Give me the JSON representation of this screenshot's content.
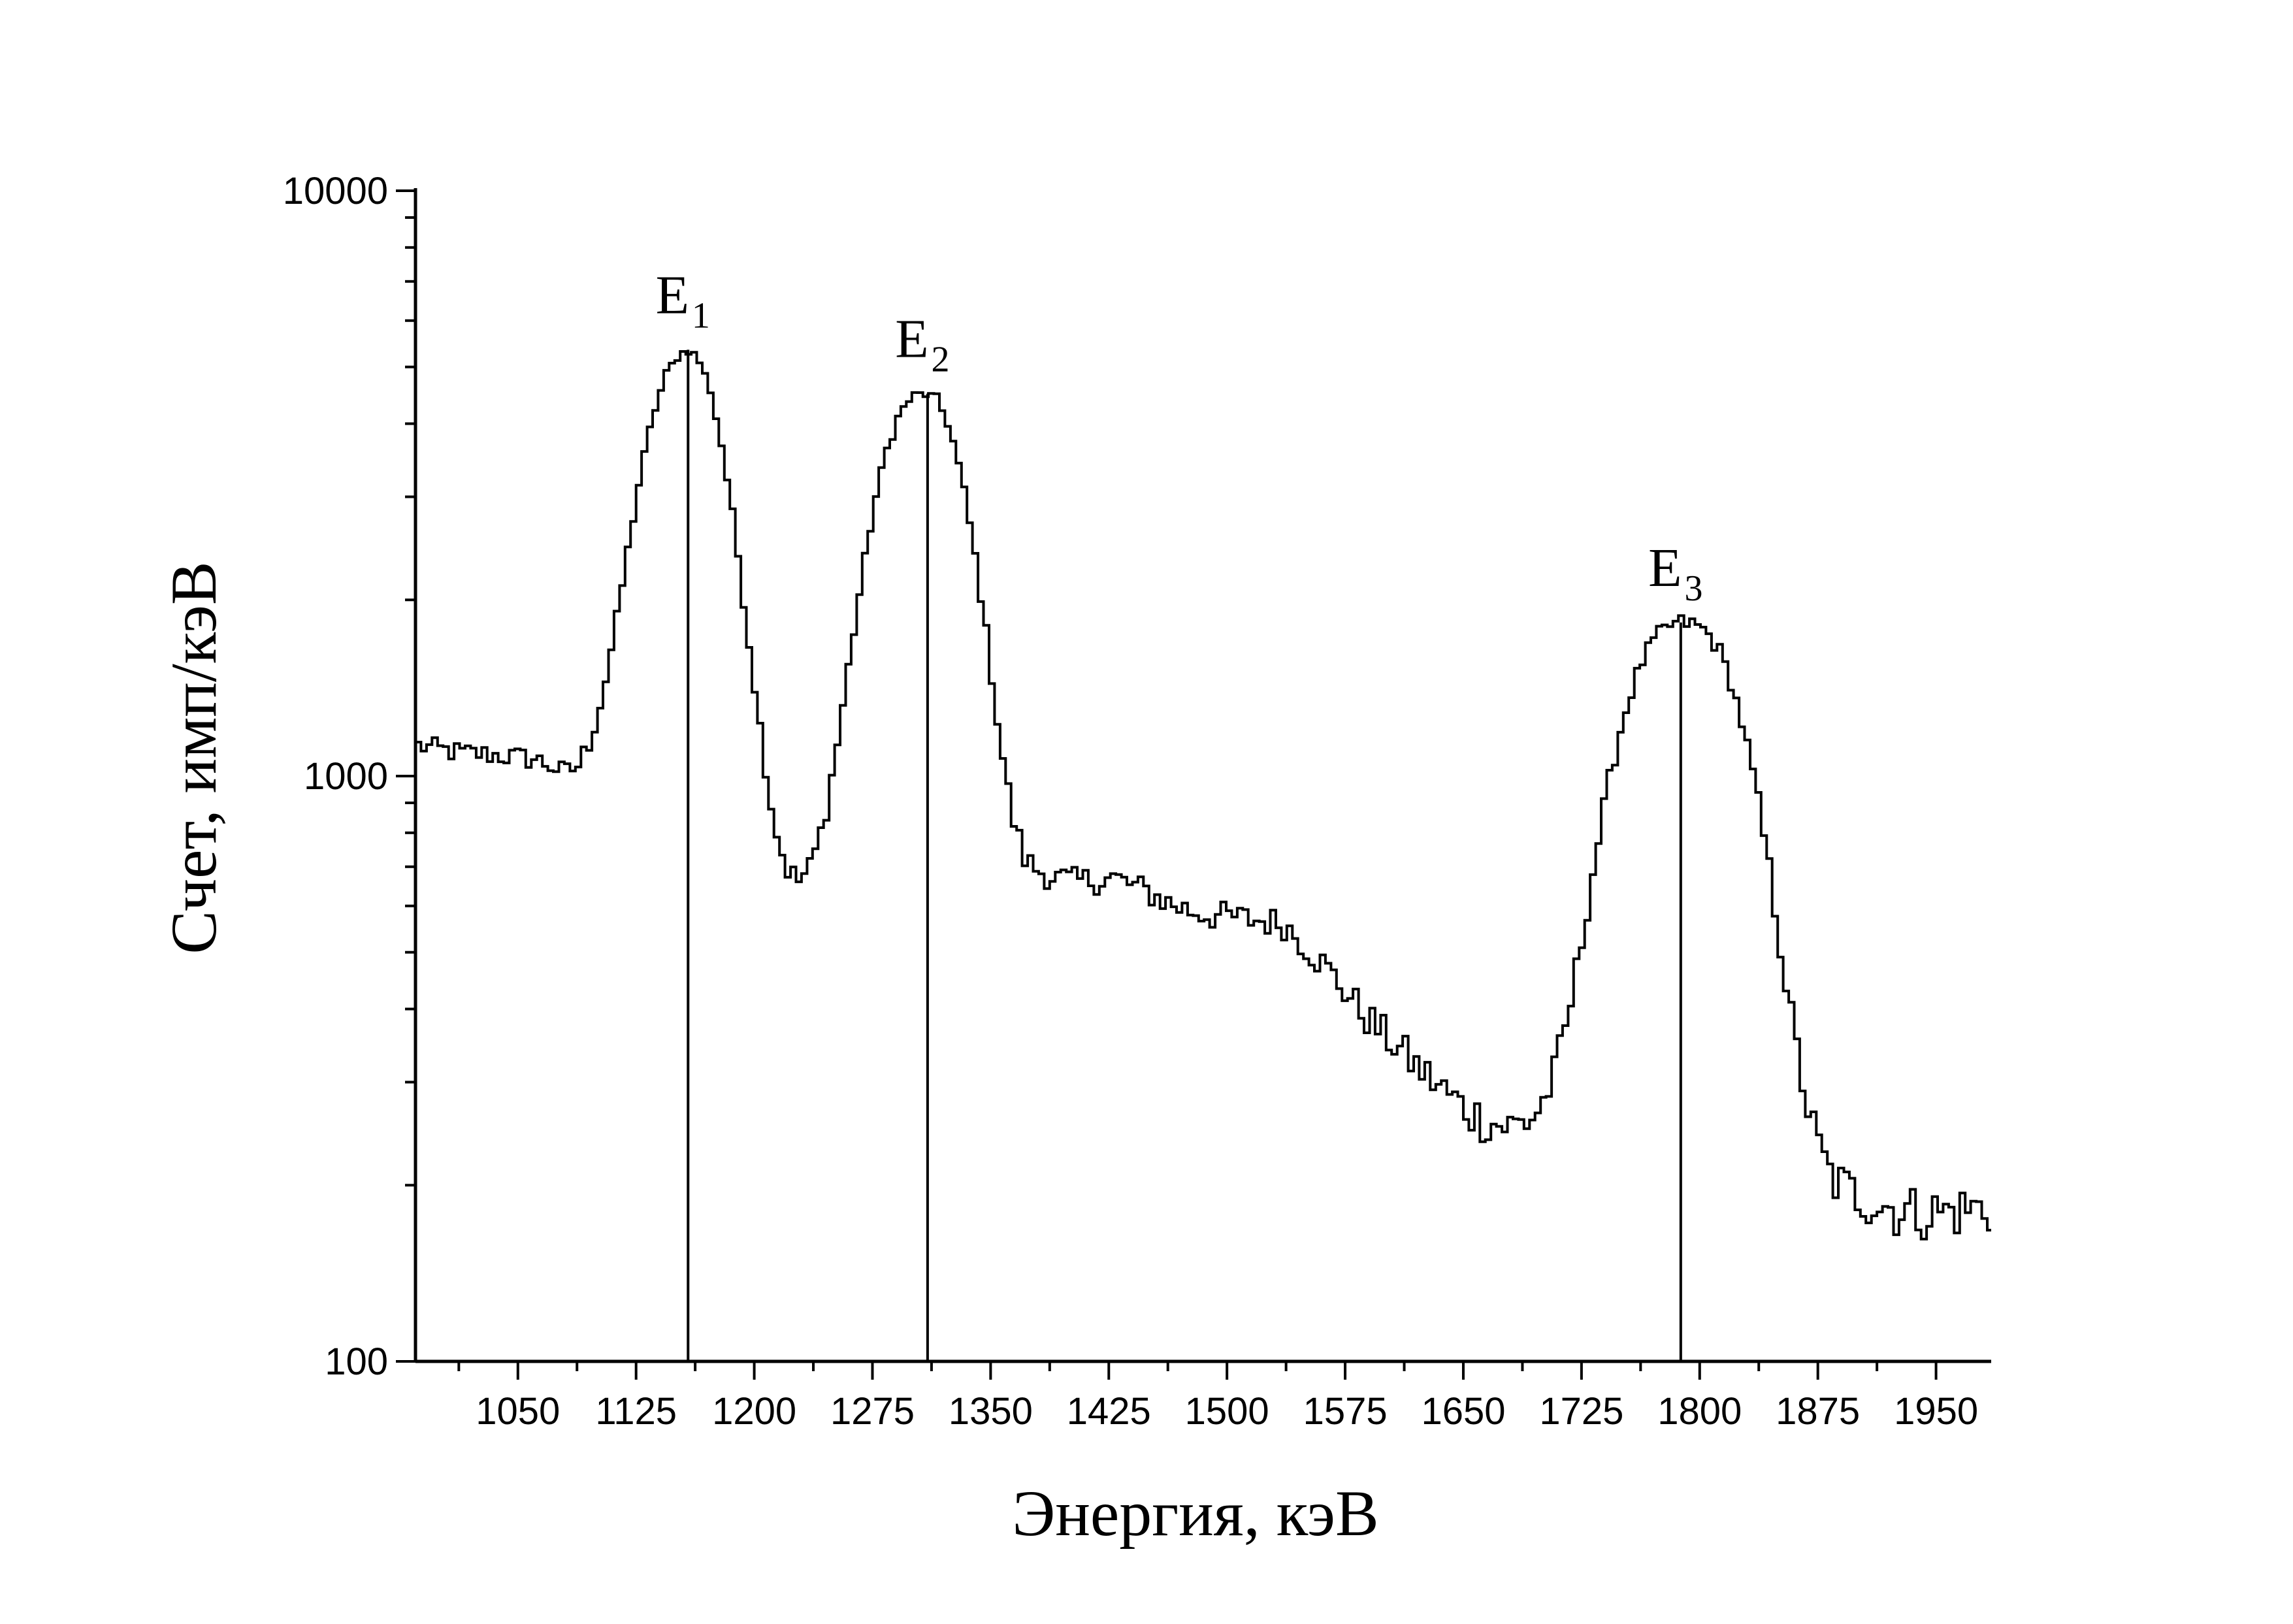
{
  "chart_data": {
    "type": "line",
    "xlabel": "Энергия, кэВ",
    "ylabel": "Счет, имп/кэВ",
    "xlim": [
      985,
      1985
    ],
    "ylim": [
      100,
      10000
    ],
    "yscale": "log",
    "x_ticks": [
      1050,
      1125,
      1200,
      1275,
      1350,
      1425,
      1500,
      1575,
      1650,
      1725,
      1800,
      1875,
      1950
    ],
    "y_ticks": [
      100,
      1000,
      10000
    ],
    "x_tick_labels": [
      "1050",
      "1125",
      "1200",
      "1275",
      "1350",
      "1425",
      "1500",
      "1575",
      "1650",
      "1725",
      "1800",
      "1875",
      "1950"
    ],
    "y_tick_labels": [
      "100",
      "1000",
      "10000"
    ],
    "grid": false,
    "series": [
      {
        "step": true,
        "color": "#000000",
        "points": [
          [
            985,
            1130
          ],
          [
            1000,
            1110
          ],
          [
            1015,
            1095
          ],
          [
            1030,
            1090
          ],
          [
            1045,
            1080
          ],
          [
            1060,
            1070
          ],
          [
            1070,
            1045
          ],
          [
            1080,
            1010
          ],
          [
            1088,
            1040
          ],
          [
            1096,
            1150
          ],
          [
            1104,
            1380
          ],
          [
            1112,
            1800
          ],
          [
            1120,
            2450
          ],
          [
            1128,
            3300
          ],
          [
            1136,
            4150
          ],
          [
            1144,
            4850
          ],
          [
            1152,
            5250
          ],
          [
            1158,
            5350
          ],
          [
            1164,
            5200
          ],
          [
            1172,
            4600
          ],
          [
            1180,
            3600
          ],
          [
            1188,
            2600
          ],
          [
            1196,
            1750
          ],
          [
            1204,
            1200
          ],
          [
            1212,
            850
          ],
          [
            1220,
            700
          ],
          [
            1228,
            660
          ],
          [
            1236,
            700
          ],
          [
            1244,
            830
          ],
          [
            1252,
            1100
          ],
          [
            1260,
            1550
          ],
          [
            1268,
            2150
          ],
          [
            1276,
            2900
          ],
          [
            1284,
            3600
          ],
          [
            1292,
            4150
          ],
          [
            1300,
            4450
          ],
          [
            1308,
            4500
          ],
          [
            1316,
            4400
          ],
          [
            1324,
            3950
          ],
          [
            1332,
            3200
          ],
          [
            1340,
            2400
          ],
          [
            1348,
            1700
          ],
          [
            1356,
            1150
          ],
          [
            1364,
            850
          ],
          [
            1372,
            720
          ],
          [
            1380,
            690
          ],
          [
            1392,
            670
          ],
          [
            1404,
            660
          ],
          [
            1416,
            665
          ],
          [
            1428,
            670
          ],
          [
            1440,
            650
          ],
          [
            1452,
            630
          ],
          [
            1464,
            605
          ],
          [
            1476,
            590
          ],
          [
            1488,
            580
          ],
          [
            1500,
            575
          ],
          [
            1512,
            570
          ],
          [
            1524,
            565
          ],
          [
            1536,
            560
          ],
          [
            1548,
            520
          ],
          [
            1560,
            480
          ],
          [
            1572,
            440
          ],
          [
            1584,
            400
          ],
          [
            1596,
            370
          ],
          [
            1608,
            345
          ],
          [
            1620,
            320
          ],
          [
            1632,
            300
          ],
          [
            1644,
            280
          ],
          [
            1656,
            265
          ],
          [
            1668,
            255
          ],
          [
            1680,
            252
          ],
          [
            1692,
            258
          ],
          [
            1700,
            275
          ],
          [
            1708,
            310
          ],
          [
            1716,
            380
          ],
          [
            1724,
            500
          ],
          [
            1732,
            680
          ],
          [
            1740,
            900
          ],
          [
            1748,
            1150
          ],
          [
            1756,
            1380
          ],
          [
            1764,
            1580
          ],
          [
            1772,
            1720
          ],
          [
            1780,
            1800
          ],
          [
            1788,
            1830
          ],
          [
            1796,
            1820
          ],
          [
            1804,
            1770
          ],
          [
            1812,
            1650
          ],
          [
            1820,
            1450
          ],
          [
            1828,
            1200
          ],
          [
            1836,
            940
          ],
          [
            1844,
            700
          ],
          [
            1852,
            500
          ],
          [
            1860,
            360
          ],
          [
            1868,
            275
          ],
          [
            1876,
            230
          ],
          [
            1884,
            205
          ],
          [
            1896,
            195
          ],
          [
            1910,
            188
          ],
          [
            1925,
            182
          ],
          [
            1940,
            180
          ],
          [
            1955,
            180
          ],
          [
            1970,
            182
          ],
          [
            1985,
            183
          ]
        ]
      }
    ],
    "annotations": [
      {
        "label": "E",
        "subscript": "1",
        "x": 1158,
        "y": 5350
      },
      {
        "label": "E",
        "subscript": "2",
        "x": 1310,
        "y": 4500
      },
      {
        "label": "E",
        "subscript": "3",
        "x": 1788,
        "y": 1830
      }
    ]
  }
}
